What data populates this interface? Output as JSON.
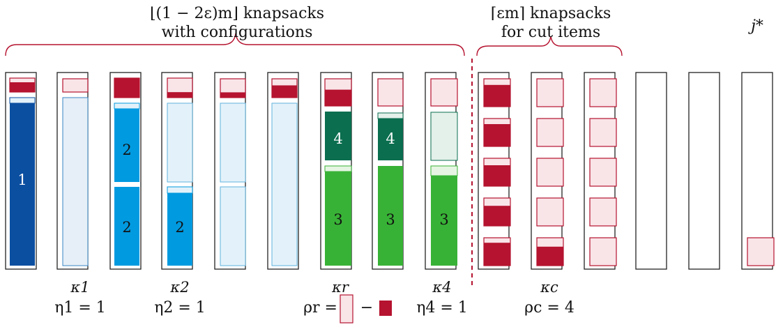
{
  "colors": {
    "crimson": "#b5132f",
    "pink_fill": "#f9e4e8",
    "dark_blue": "#0b4fa1",
    "light_blue_fill": "#e3f2fa",
    "light_blue_2": "#e6eef7",
    "bright_blue": "#009ae0",
    "dark_green": "#0a6e4f",
    "pale_green": "#e4f0ea",
    "green": "#38b236",
    "pale_green_2": "#e6f5e3"
  },
  "headers": {
    "config_line1": "⌊(1 − 2ε)m⌋ knapsacks",
    "config_line2": "with configurations",
    "cut_line1": "⌈εm⌉ knapsacks",
    "cut_line2": "for cut items",
    "jstar": "j*"
  },
  "item_labels": {
    "one": "1",
    "two": "2",
    "three": "3",
    "four": "4"
  },
  "config_labels": {
    "kappa1": "κ1",
    "eta1": "η1 = 1",
    "kappa2": "κ2",
    "eta2": "η2 = 1",
    "kappar": "κr",
    "rho_r_prefix": "ρr =",
    "rho_r_minus": "−",
    "kappa4": "κ4",
    "eta4": "η4 = 1",
    "kappac": "κc",
    "rhoc": "ρc = 4"
  }
}
